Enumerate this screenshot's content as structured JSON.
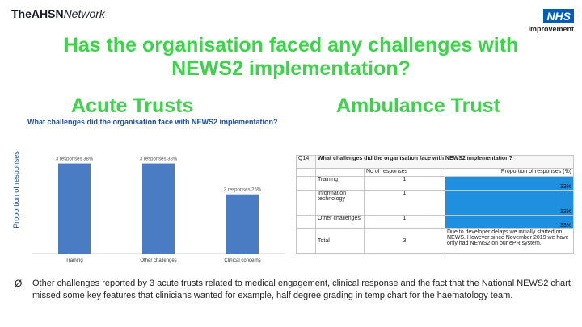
{
  "header": {
    "logo_bold": "The",
    "logo_mid": "AHSN",
    "logo_italic": "Network",
    "nhs_badge": "NHS",
    "nhs_sub": "Improvement"
  },
  "title_line1": "Has the organisation faced any challenges with",
  "title_line2": "NEWS2 implementation?",
  "left_heading": "Acute Trusts",
  "right_heading": "Ambulance Trust",
  "chart_data": {
    "type": "bar",
    "title": "What challenges did the organisation face with NEWS2 implementation?",
    "ylabel": "Proportion of responses",
    "categories": [
      "Training",
      "Other challenges",
      "Clinical concerns"
    ],
    "values": [
      38,
      38,
      25
    ],
    "data_labels": [
      "3 responses 38%",
      "3 responses 38%",
      "2 responses 25%"
    ],
    "ylim": [
      0,
      45
    ],
    "colors": {
      "bar": "#4a7cc4"
    }
  },
  "table": {
    "qid": "Q14",
    "question": "What challenges did the organisation face with NEWS2 implementation?",
    "col_count": "No of responses",
    "col_prop": "Proportion of responses (%)",
    "rows": [
      {
        "label": "Training",
        "count": "1",
        "pct": "33%"
      },
      {
        "label": "Information technology",
        "count": "1",
        "pct": "33%"
      },
      {
        "label": "Other challenges",
        "count": "1",
        "pct": "33%"
      }
    ],
    "total_label": "Total",
    "total_count": "3",
    "note": "Due to developer delays we initially started on NEWS. However since November 2019 we have only had NEWS2 on our ePR system."
  },
  "bullet_mark": "Ø",
  "bullet_text": "Other challenges reported by 3 acute trusts related to medical engagement, clinical response and the fact that the National NEWS2 chart missed some key features that clinicians wanted for example, half degree grading in temp chart for the haematology team."
}
